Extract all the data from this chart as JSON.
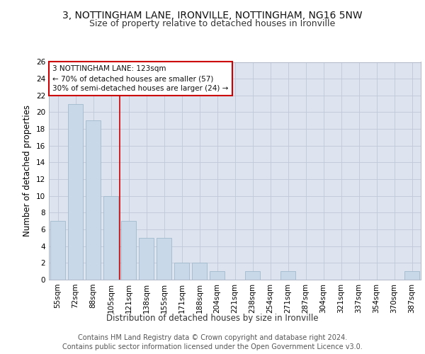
{
  "title": "3, NOTTINGHAM LANE, IRONVILLE, NOTTINGHAM, NG16 5NW",
  "subtitle": "Size of property relative to detached houses in Ironville",
  "xlabel": "Distribution of detached houses by size in Ironville",
  "ylabel": "Number of detached properties",
  "categories": [
    "55sqm",
    "72sqm",
    "88sqm",
    "105sqm",
    "121sqm",
    "138sqm",
    "155sqm",
    "171sqm",
    "188sqm",
    "204sqm",
    "221sqm",
    "238sqm",
    "254sqm",
    "271sqm",
    "287sqm",
    "304sqm",
    "321sqm",
    "337sqm",
    "354sqm",
    "370sqm",
    "387sqm"
  ],
  "values": [
    7,
    21,
    19,
    10,
    7,
    5,
    5,
    2,
    2,
    1,
    0,
    1,
    0,
    1,
    0,
    0,
    0,
    0,
    0,
    0,
    1
  ],
  "bar_color": "#c8d8e8",
  "bar_edge_color": "#a0b8cc",
  "vline_x": 3.5,
  "vline_color": "#cc0000",
  "annotation_line1": "3 NOTTINGHAM LANE: 123sqm",
  "annotation_line2": "← 70% of detached houses are smaller (57)",
  "annotation_line3": "30% of semi-detached houses are larger (24) →",
  "annotation_box_color": "#cc0000",
  "ylim": [
    0,
    26
  ],
  "yticks": [
    0,
    2,
    4,
    6,
    8,
    10,
    12,
    14,
    16,
    18,
    20,
    22,
    24,
    26
  ],
  "grid_color": "#c0c8d8",
  "background_color": "#dde4f0",
  "footer_line1": "Contains HM Land Registry data © Crown copyright and database right 2024.",
  "footer_line2": "Contains public sector information licensed under the Open Government Licence v3.0.",
  "title_fontsize": 10,
  "subtitle_fontsize": 9,
  "axis_label_fontsize": 8.5,
  "tick_fontsize": 7.5,
  "footer_fontsize": 7
}
